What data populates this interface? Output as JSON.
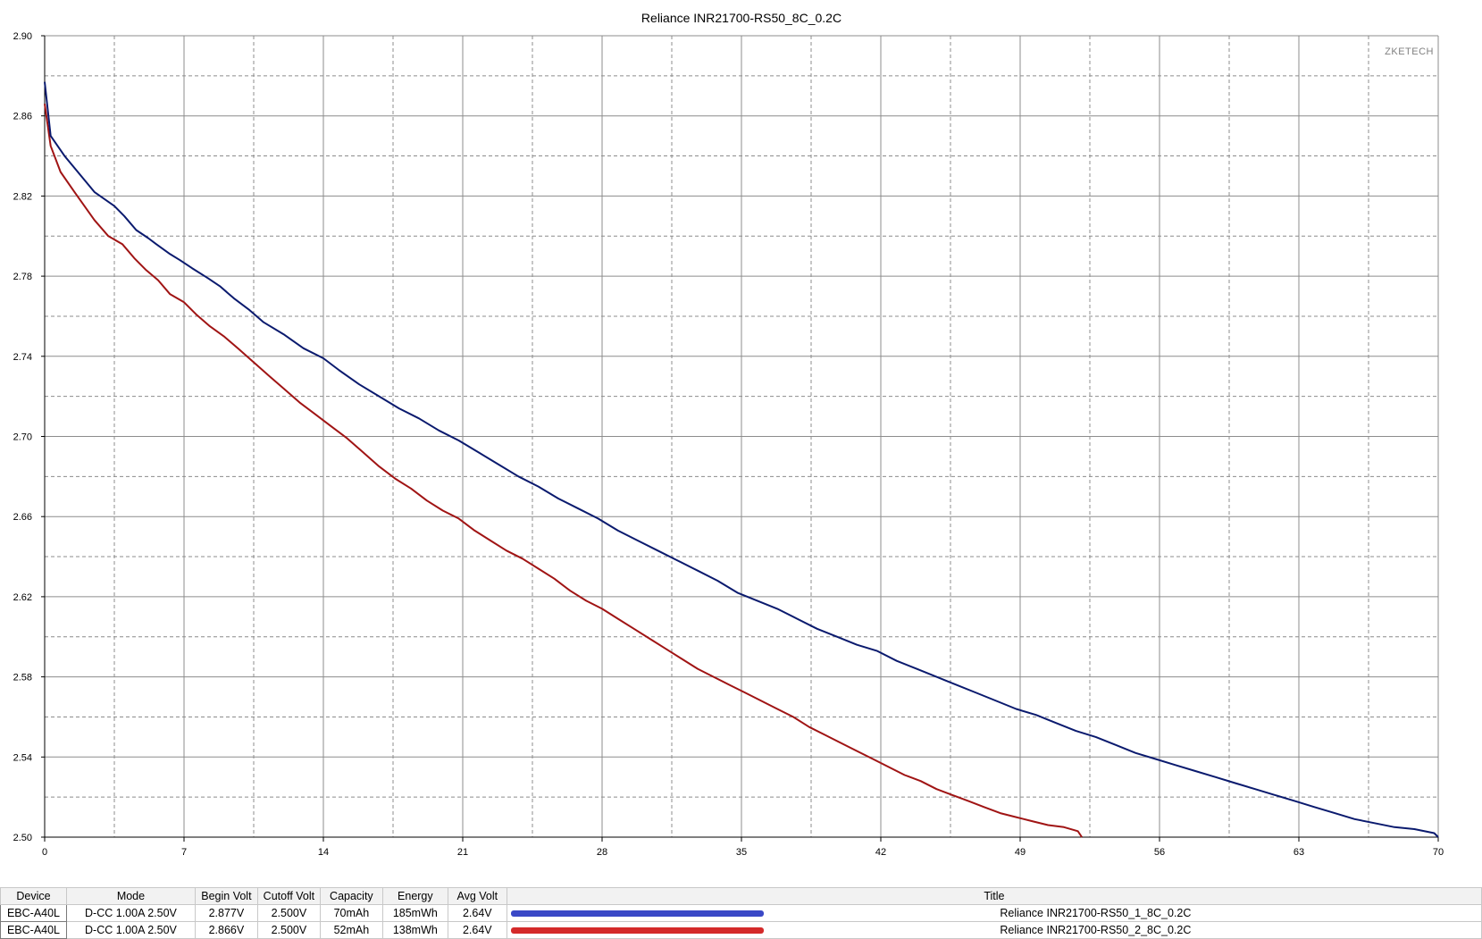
{
  "chart_data": {
    "type": "line",
    "title": "Reliance INR21700-RS50_8C_0.2C",
    "watermark": "ZKETECH",
    "xlabel": "",
    "ylabel": "",
    "xlim": [
      0,
      70
    ],
    "ylim": [
      2.5,
      2.9
    ],
    "x_ticks": [
      0,
      7,
      14,
      21,
      28,
      35,
      42,
      49,
      56,
      63,
      70
    ],
    "x_tick_labels": [
      "0",
      "7",
      "14",
      "21",
      "28",
      "35",
      "42",
      "49",
      "56",
      "63",
      "70"
    ],
    "y_ticks": [
      2.5,
      2.54,
      2.58,
      2.62,
      2.66,
      2.7,
      2.74,
      2.78,
      2.82,
      2.86,
      2.9
    ],
    "y_tick_labels": [
      "2.50",
      "2.54",
      "2.58",
      "2.62",
      "2.66",
      "2.70",
      "2.74",
      "2.78",
      "2.82",
      "2.86",
      "2.90"
    ],
    "grid": true,
    "series": [
      {
        "name": "Reliance INR21700-RS50_1_8C_0.2C",
        "color": "#0a1a6e",
        "x": [
          0,
          0.3,
          1,
          1.5,
          2.5,
          3.5,
          4,
          4.6,
          5.2,
          5.6,
          6.3,
          6.8,
          7.4,
          8.2,
          8.8,
          9.5,
          10.3,
          11,
          12,
          13,
          14,
          14.8,
          15.8,
          16.8,
          17.8,
          18.8,
          19.8,
          20.8,
          21.8,
          22.8,
          23.8,
          24.8,
          25.8,
          26.8,
          27.8,
          28.8,
          29.8,
          30.8,
          31.8,
          32.8,
          33.8,
          34.8,
          35.8,
          36.8,
          37.8,
          38.8,
          39.8,
          40.8,
          41.8,
          42.8,
          43.8,
          44.8,
          45.8,
          46.8,
          47.8,
          48.8,
          49.8,
          50.8,
          51.8,
          52.8,
          53.8,
          54.8,
          55.8,
          56.8,
          57.8,
          58.8,
          59.8,
          60.8,
          61.8,
          62.8,
          63.8,
          64.8,
          65.8,
          66.8,
          67.8,
          68.8,
          69.8,
          70
        ],
        "values": [
          2.877,
          2.85,
          2.84,
          2.834,
          2.822,
          2.815,
          2.81,
          2.803,
          2.799,
          2.796,
          2.791,
          2.788,
          2.784,
          2.779,
          2.775,
          2.769,
          2.763,
          2.757,
          2.751,
          2.744,
          2.739,
          2.733,
          2.726,
          2.72,
          2.714,
          2.709,
          2.703,
          2.698,
          2.692,
          2.686,
          2.68,
          2.675,
          2.669,
          2.664,
          2.659,
          2.653,
          2.648,
          2.643,
          2.638,
          2.633,
          2.628,
          2.622,
          2.618,
          2.614,
          2.609,
          2.604,
          2.6,
          2.596,
          2.593,
          2.588,
          2.584,
          2.58,
          2.576,
          2.572,
          2.568,
          2.564,
          2.561,
          2.557,
          2.553,
          2.55,
          2.546,
          2.542,
          2.539,
          2.536,
          2.533,
          2.53,
          2.527,
          2.524,
          2.521,
          2.518,
          2.515,
          2.512,
          2.509,
          2.507,
          2.505,
          2.504,
          2.502,
          2.5
        ]
      },
      {
        "name": "Reliance INR21700-RS50_2_8C_0.2C",
        "color": "#a01414",
        "x": [
          0,
          0.3,
          0.8,
          1.5,
          2.5,
          3.2,
          3.9,
          4.5,
          5.1,
          5.7,
          6.3,
          7,
          7.6,
          8.3,
          9,
          9.7,
          10.5,
          11.3,
          12,
          12.8,
          13.6,
          14.4,
          15.2,
          16,
          16.8,
          17.6,
          18.4,
          19.2,
          20,
          20.8,
          21.6,
          22.4,
          23.2,
          24,
          24.8,
          25.6,
          26.4,
          27.2,
          28,
          28.8,
          29.6,
          30.4,
          31.2,
          32,
          32.8,
          33.6,
          34.4,
          35.2,
          36,
          36.8,
          37.6,
          38.4,
          39.2,
          40,
          40.8,
          41.6,
          42.4,
          43.2,
          44,
          44.8,
          45.6,
          46.4,
          47.2,
          48,
          48.8,
          49.6,
          50.4,
          51.2,
          51.9,
          52.1
        ],
        "values": [
          2.866,
          2.845,
          2.832,
          2.822,
          2.808,
          2.8,
          2.796,
          2.789,
          2.783,
          2.778,
          2.771,
          2.767,
          2.761,
          2.755,
          2.75,
          2.744,
          2.737,
          2.73,
          2.724,
          2.717,
          2.711,
          2.705,
          2.699,
          2.692,
          2.685,
          2.679,
          2.674,
          2.668,
          2.663,
          2.659,
          2.653,
          2.648,
          2.643,
          2.639,
          2.634,
          2.629,
          2.623,
          2.618,
          2.614,
          2.609,
          2.604,
          2.599,
          2.594,
          2.589,
          2.584,
          2.58,
          2.576,
          2.572,
          2.568,
          2.564,
          2.56,
          2.555,
          2.551,
          2.547,
          2.543,
          2.539,
          2.535,
          2.531,
          2.528,
          2.524,
          2.521,
          2.518,
          2.515,
          2.512,
          2.51,
          2.508,
          2.506,
          2.505,
          2.503,
          2.5
        ]
      }
    ]
  },
  "table": {
    "headers": [
      "Device",
      "Mode",
      "Begin Volt",
      "Cutoff Volt",
      "Capacity",
      "Energy",
      "Avg Volt",
      "Title"
    ],
    "rows": [
      {
        "device": "EBC-A40L",
        "mode": "D-CC  1.00A  2.50V",
        "begin_volt": "2.877V",
        "cutoff_volt": "2.500V",
        "capacity": "70mAh",
        "energy": "185mWh",
        "avg_volt": "2.64V",
        "swatch_color": "#3a48c6",
        "title": "Reliance INR21700-RS50_1_8C_0.2C"
      },
      {
        "device": "EBC-A40L",
        "mode": "D-CC  1.00A  2.50V",
        "begin_volt": "2.866V",
        "cutoff_volt": "2.500V",
        "capacity": "52mAh",
        "energy": "138mWh",
        "avg_volt": "2.64V",
        "swatch_color": "#d42a2a",
        "title": "Reliance INR21700-RS50_2_8C_0.2C"
      }
    ]
  }
}
